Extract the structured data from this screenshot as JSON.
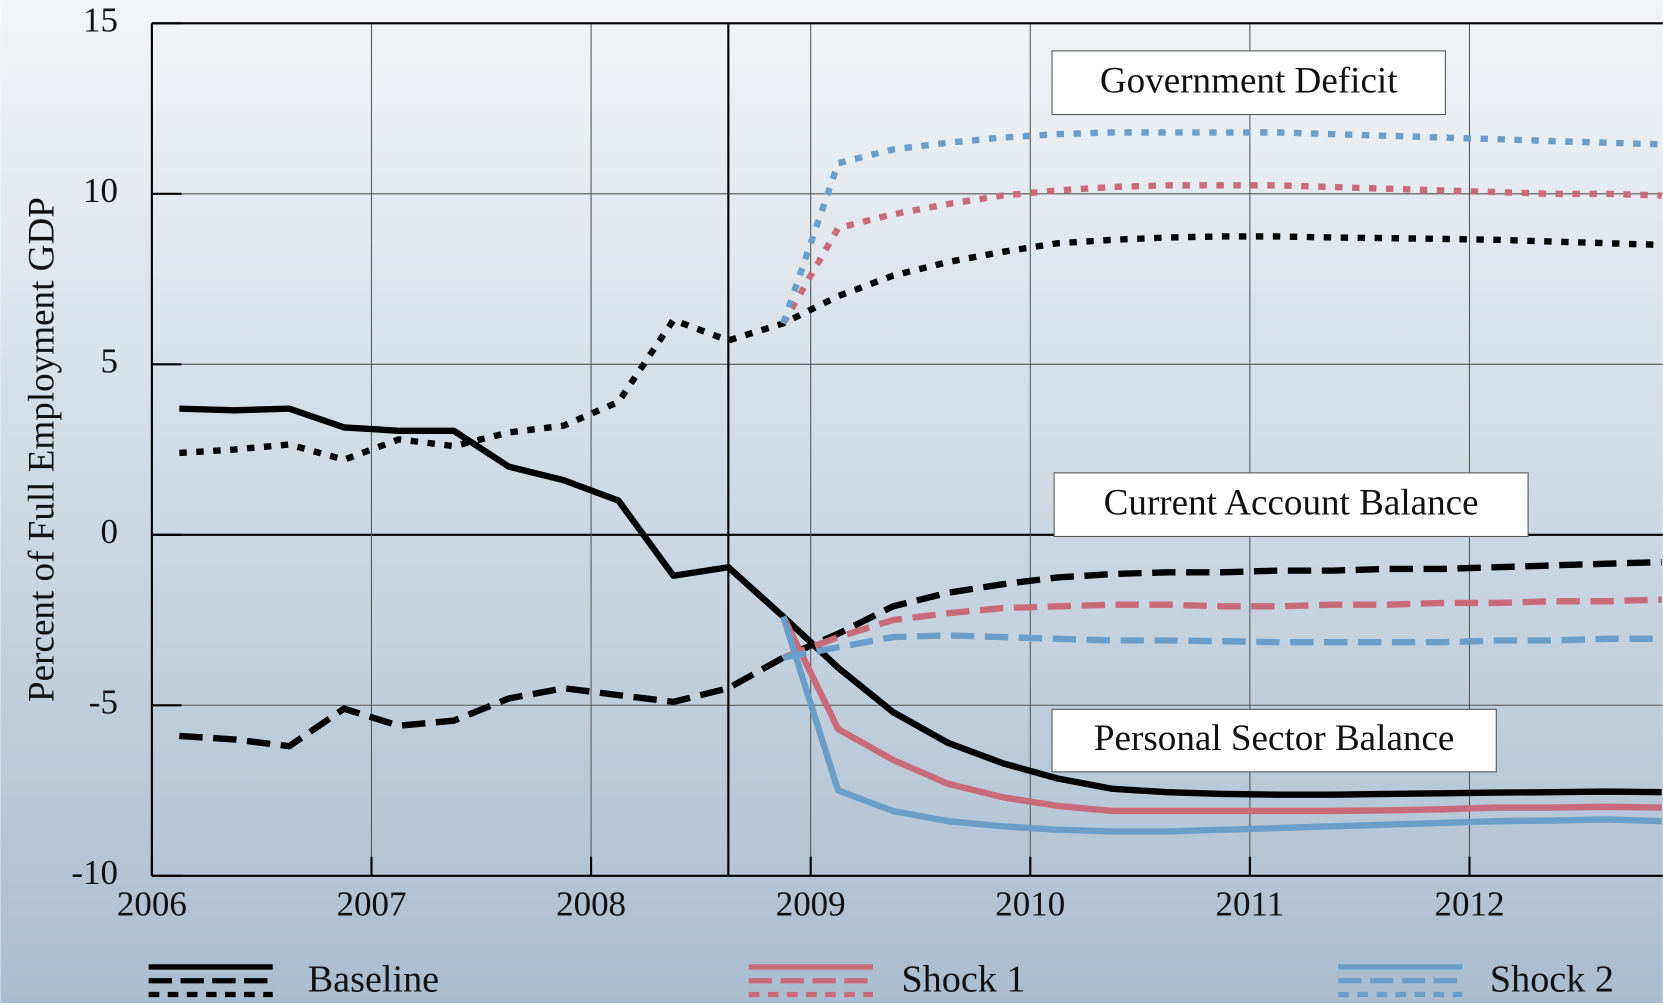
{
  "chart_data": {
    "type": "line",
    "y_label": "Percent of Full Employment GDP",
    "x": [
      2006.125,
      2006.375,
      2006.625,
      2006.875,
      2007.125,
      2007.375,
      2007.625,
      2007.875,
      2008.125,
      2008.375,
      2008.625,
      2008.875,
      2009.125,
      2009.375,
      2009.625,
      2009.875,
      2010.125,
      2010.375,
      2010.625,
      2010.875,
      2011.125,
      2011.375,
      2011.625,
      2011.875,
      2012.125,
      2012.375,
      2012.625,
      2012.875
    ],
    "xlim": [
      2006,
      2012.88
    ],
    "xticks": [
      2006,
      2007,
      2008,
      2009,
      2010,
      2011,
      2012
    ],
    "ylim": [
      -10,
      15
    ],
    "yticks": [
      -10,
      -5,
      0,
      5,
      10,
      15
    ],
    "grid": true,
    "vline": 2008.625,
    "balances": [
      {
        "label": "Government Deficit",
        "dash": "dotted"
      },
      {
        "label": "Current Account Balance",
        "dash": "dashed"
      },
      {
        "label": "Personal Sector Balance",
        "dash": "solid"
      }
    ],
    "series": [
      {
        "name": "Baseline",
        "color": "#000000",
        "values": [
          [
            2.4,
            2.5,
            2.65,
            2.2,
            2.8,
            2.6,
            3.0,
            3.2,
            3.9,
            6.3,
            5.7,
            6.2,
            7.0,
            7.6,
            8.0,
            8.3,
            8.55,
            8.65,
            8.72,
            8.75,
            8.75,
            8.72,
            8.7,
            8.68,
            8.65,
            8.6,
            8.55,
            8.5
          ],
          [
            -5.9,
            -6.0,
            -6.2,
            -5.1,
            -5.6,
            -5.45,
            -4.8,
            -4.5,
            -4.7,
            -4.9,
            -4.5,
            -3.6,
            -2.9,
            -2.1,
            -1.7,
            -1.45,
            -1.25,
            -1.15,
            -1.1,
            -1.1,
            -1.05,
            -1.05,
            -1.0,
            -1.0,
            -0.95,
            -0.9,
            -0.85,
            -0.8
          ],
          [
            3.7,
            3.65,
            3.7,
            3.15,
            3.05,
            3.05,
            2.0,
            1.6,
            1.0,
            -1.2,
            -0.95,
            -2.4,
            -3.9,
            -5.2,
            -6.1,
            -6.7,
            -7.15,
            -7.45,
            -7.55,
            -7.6,
            -7.62,
            -7.62,
            -7.6,
            -7.58,
            -7.56,
            -7.55,
            -7.53,
            -7.55
          ]
        ]
      },
      {
        "name": "Shock 1",
        "color": "#c96a7a",
        "values": [
          [
            null,
            null,
            null,
            null,
            null,
            null,
            null,
            null,
            null,
            null,
            null,
            6.2,
            9.0,
            9.4,
            9.7,
            9.95,
            10.1,
            10.2,
            10.25,
            10.25,
            10.25,
            10.2,
            10.15,
            10.1,
            10.05,
            10.0,
            10.0,
            9.95
          ],
          [
            null,
            null,
            null,
            null,
            null,
            null,
            null,
            null,
            null,
            null,
            null,
            -3.6,
            -3.0,
            -2.5,
            -2.3,
            -2.15,
            -2.1,
            -2.05,
            -2.05,
            -2.1,
            -2.1,
            -2.05,
            -2.05,
            -2.0,
            -2.0,
            -1.95,
            -1.95,
            -1.9
          ],
          [
            null,
            null,
            null,
            null,
            null,
            null,
            null,
            null,
            null,
            null,
            null,
            -2.4,
            -5.7,
            -6.6,
            -7.3,
            -7.7,
            -7.95,
            -8.1,
            -8.1,
            -8.1,
            -8.1,
            -8.1,
            -8.08,
            -8.05,
            -8.0,
            -8.0,
            -7.98,
            -8.0
          ]
        ]
      },
      {
        "name": "Shock 2",
        "color": "#6a9ec8",
        "values": [
          [
            null,
            null,
            null,
            null,
            null,
            null,
            null,
            null,
            null,
            null,
            null,
            6.2,
            10.9,
            11.3,
            11.5,
            11.65,
            11.75,
            11.8,
            11.8,
            11.8,
            11.8,
            11.75,
            11.7,
            11.65,
            11.6,
            11.55,
            11.5,
            11.45
          ],
          [
            null,
            null,
            null,
            null,
            null,
            null,
            null,
            null,
            null,
            null,
            null,
            -3.6,
            -3.3,
            -3.0,
            -2.95,
            -3.0,
            -3.05,
            -3.1,
            -3.1,
            -3.12,
            -3.15,
            -3.15,
            -3.15,
            -3.15,
            -3.1,
            -3.1,
            -3.05,
            -3.05
          ],
          [
            null,
            null,
            null,
            null,
            null,
            null,
            null,
            null,
            null,
            null,
            null,
            -2.4,
            -7.5,
            -8.1,
            -8.4,
            -8.55,
            -8.65,
            -8.7,
            -8.7,
            -8.65,
            -8.6,
            -8.55,
            -8.5,
            -8.45,
            -8.4,
            -8.38,
            -8.35,
            -8.4
          ]
        ]
      }
    ]
  }
}
